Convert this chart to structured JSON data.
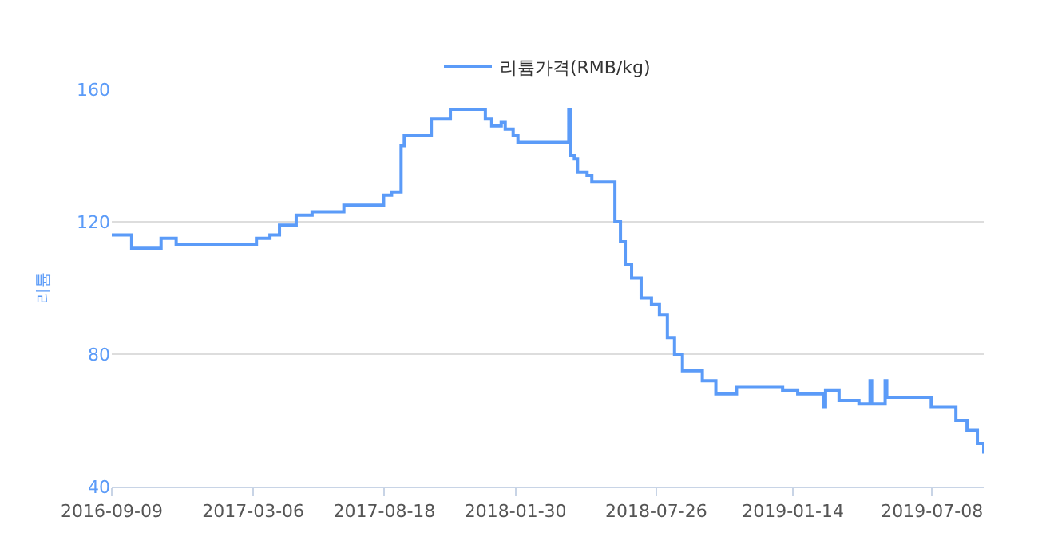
{
  "chart_data": {
    "type": "step",
    "ylabel": "리튬",
    "legend": "top",
    "grid": "y",
    "marker": "none",
    "line_style": "solid",
    "x": [
      "2016-09-09",
      "2016-10-04",
      "2016-11-10",
      "2016-11-29",
      "2017-03-10",
      "2017-03-27",
      "2017-04-08",
      "2017-04-29",
      "2017-05-19",
      "2017-06-28",
      "2017-08-17",
      "2017-08-27",
      "2017-09-08",
      "2017-09-12",
      "2017-10-16",
      "2017-11-09",
      "2017-12-23",
      "2017-12-31",
      "2018-01-12",
      "2018-01-17",
      "2018-01-27",
      "2018-02-02",
      "2018-04-07",
      "2018-04-09",
      "2018-04-14",
      "2018-04-18",
      "2018-04-30",
      "2018-05-06",
      "2018-06-04",
      "2018-06-11",
      "2018-06-17",
      "2018-06-25",
      "2018-07-07",
      "2018-07-20",
      "2018-07-30",
      "2018-08-09",
      "2018-08-18",
      "2018-08-28",
      "2018-09-22",
      "2018-10-09",
      "2018-11-04",
      "2019-01-01",
      "2019-01-20",
      "2019-02-22",
      "2019-02-24",
      "2019-03-13",
      "2019-04-07",
      "2019-04-21",
      "2019-04-23",
      "2019-05-10",
      "2019-05-12",
      "2019-07-07",
      "2019-08-07",
      "2019-08-21",
      "2019-09-03",
      "2019-09-11"
    ],
    "series": [
      {
        "name": "리튬가격(RMB/kg)",
        "color": "#5b9bf8",
        "values": [
          116,
          112,
          115,
          113,
          115,
          116,
          119,
          122,
          123,
          125,
          128,
          129,
          143,
          146,
          151,
          154,
          151,
          149,
          150,
          148,
          146,
          144,
          154,
          140,
          139,
          135,
          134,
          132,
          120,
          114,
          107,
          103,
          97,
          95,
          92,
          85,
          80,
          75,
          72,
          68,
          70,
          69,
          68,
          64,
          69,
          66,
          65,
          72,
          65,
          72,
          67,
          64,
          60,
          57,
          53,
          50
        ]
      }
    ],
    "xlim": [
      "2016-09-09",
      "2019-09-11"
    ],
    "xticks": [
      {
        "value": "2016-09-09",
        "label": "2016-09-09"
      },
      {
        "value": "2017-03-06",
        "label": "2017-03-06"
      },
      {
        "value": "2017-08-18",
        "label": "2017-08-18"
      },
      {
        "value": "2018-01-30",
        "label": "2018-01-30"
      },
      {
        "value": "2018-07-26",
        "label": "2018-07-26"
      },
      {
        "value": "2019-01-14",
        "label": "2019-01-14"
      },
      {
        "value": "2019-07-08",
        "label": "2019-07-08"
      }
    ],
    "ylim": [
      40,
      160
    ],
    "yticks": [
      40,
      80,
      120,
      160
    ]
  }
}
